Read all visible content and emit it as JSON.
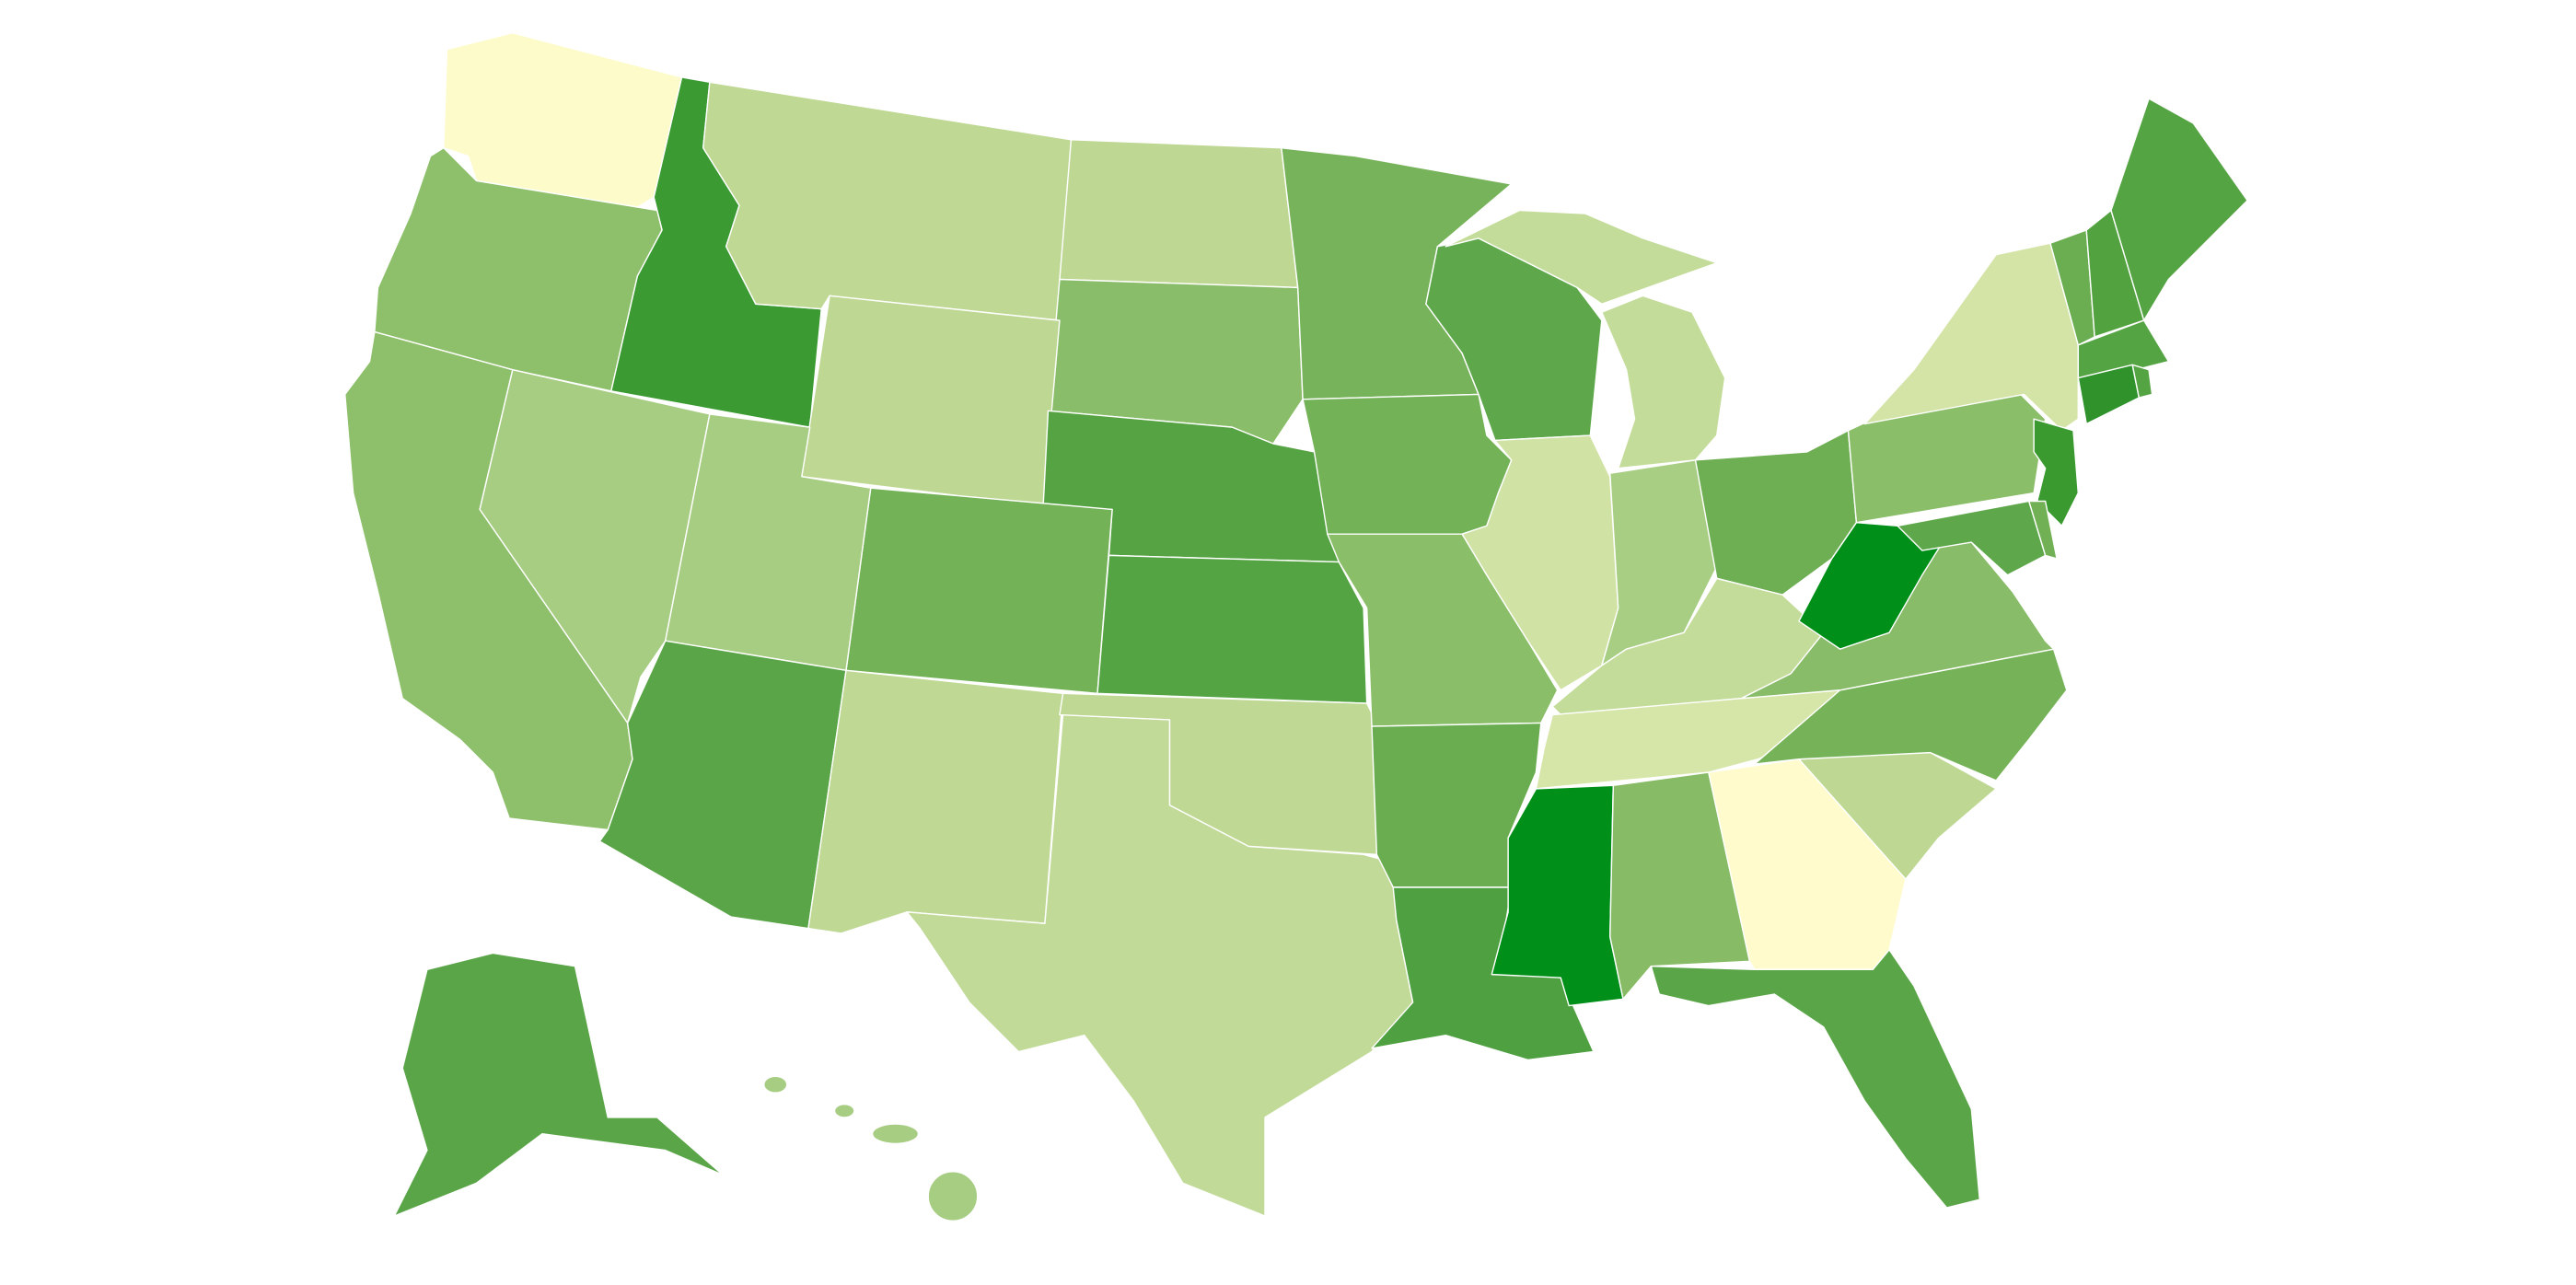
{
  "map": {
    "fills": [
      "#fdfbc9",
      "#8ec06c",
      "#3b9a32",
      "#bfd894",
      "#bed793",
      "#8abd69",
      "#bed893",
      "#56a343",
      "#73b257",
      "#55a443",
      "#a7cd83",
      "#8ec06c",
      "#a7cd83",
      "#5aa547",
      "#bfd894",
      "#c1da97",
      "#bfd894",
      "#77b35a",
      "#73b257",
      "#8abe69",
      "#6aad51",
      "#4ea040",
      "#5ea84b",
      "#d0e3a4",
      "#c4dc99",
      "#a8ce84",
      "#6faf54",
      "#c4dc99",
      "#d6e6a8",
      "#008f18",
      "#87bb66",
      "#fffbcc",
      "#5aa547",
      "#bed893",
      "#76b358",
      "#88bc68",
      "#008f18",
      "#8abe69",
      "#d3e4a6",
      "#3a9a30",
      "#5ea84b",
      "#72b055",
      "#6aae51",
      "#52a240",
      "#55a443",
      "#55a443",
      "#2f922b",
      "#55a443",
      "#5aa547",
      "#a7cd83"
    ]
  }
}
